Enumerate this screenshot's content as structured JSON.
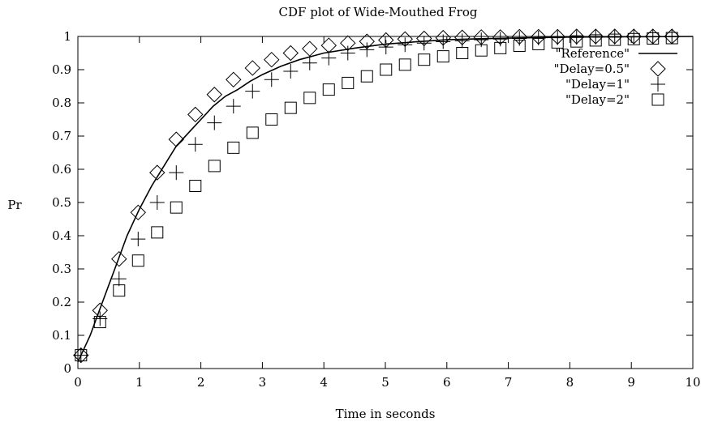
{
  "chart_data": {
    "type": "line",
    "title": "CDF plot of Wide-Mouthed Frog",
    "xlabel": "Time in seconds",
    "ylabel": "Pr",
    "xlim": [
      0,
      10
    ],
    "ylim": [
      0,
      1
    ],
    "xticks": [
      "0",
      "1",
      "2",
      "3",
      "4",
      "5",
      "6",
      "7",
      "8",
      "9",
      "10"
    ],
    "yticks": [
      "0",
      "0.1",
      "0.2",
      "0.3",
      "0.4",
      "0.5",
      "0.6",
      "0.7",
      "0.8",
      "0.9",
      "1"
    ],
    "grid": false,
    "legend_position": "top-right",
    "series": [
      {
        "name": "\"Reference\"",
        "style": "line",
        "x": [
          0,
          0.1,
          0.2,
          0.3,
          0.4,
          0.5,
          0.6,
          0.7,
          0.8,
          0.9,
          1.0,
          1.2,
          1.4,
          1.6,
          1.8,
          2.0,
          2.2,
          2.4,
          2.6,
          2.8,
          3.0,
          3.3,
          3.6,
          4.0,
          4.5,
          5.0,
          5.5,
          6.0,
          6.5,
          7.0,
          8.0,
          9.0,
          10.0
        ],
        "y": [
          0.02,
          0.06,
          0.1,
          0.15,
          0.2,
          0.25,
          0.3,
          0.35,
          0.4,
          0.44,
          0.48,
          0.55,
          0.61,
          0.67,
          0.71,
          0.75,
          0.79,
          0.82,
          0.84,
          0.865,
          0.885,
          0.91,
          0.93,
          0.95,
          0.965,
          0.977,
          0.984,
          0.99,
          0.993,
          0.995,
          0.998,
          0.999,
          1.0
        ]
      },
      {
        "name": "\"Delay=0.5\"",
        "style": "diamond",
        "x": [
          0.05,
          0.36,
          0.67,
          0.98,
          1.29,
          1.6,
          1.91,
          2.22,
          2.53,
          2.84,
          3.15,
          3.46,
          3.77,
          4.08,
          4.39,
          4.7,
          5.01,
          5.32,
          5.63,
          5.94,
          6.25,
          6.56,
          6.87,
          7.18,
          7.49,
          7.8,
          8.11,
          8.42,
          8.73,
          9.04,
          9.35,
          9.66
        ],
        "y": [
          0.04,
          0.175,
          0.33,
          0.47,
          0.59,
          0.69,
          0.765,
          0.825,
          0.87,
          0.905,
          0.93,
          0.95,
          0.963,
          0.973,
          0.98,
          0.985,
          0.989,
          0.992,
          0.994,
          0.996,
          0.997,
          0.998,
          0.998,
          0.999,
          0.999,
          0.999,
          1.0,
          1.0,
          1.0,
          1.0,
          1.0,
          1.0
        ]
      },
      {
        "name": "\"Delay=1\"",
        "style": "plus",
        "x": [
          0.05,
          0.36,
          0.67,
          0.98,
          1.29,
          1.6,
          1.91,
          2.22,
          2.53,
          2.84,
          3.15,
          3.46,
          3.77,
          4.08,
          4.39,
          4.7,
          5.01,
          5.32,
          5.63,
          5.94,
          6.25,
          6.56,
          6.87,
          7.18,
          7.49,
          7.8,
          8.11,
          8.42,
          8.73,
          9.04,
          9.35,
          9.66
        ],
        "y": [
          0.04,
          0.15,
          0.27,
          0.39,
          0.5,
          0.59,
          0.675,
          0.74,
          0.79,
          0.835,
          0.87,
          0.895,
          0.92,
          0.935,
          0.95,
          0.96,
          0.968,
          0.975,
          0.98,
          0.984,
          0.987,
          0.99,
          0.992,
          0.994,
          0.995,
          0.996,
          0.997,
          0.998,
          0.998,
          0.999,
          0.999,
          0.999
        ]
      },
      {
        "name": "\"Delay=2\"",
        "style": "square",
        "x": [
          0.05,
          0.36,
          0.67,
          0.98,
          1.29,
          1.6,
          1.91,
          2.22,
          2.53,
          2.84,
          3.15,
          3.46,
          3.77,
          4.08,
          4.39,
          4.7,
          5.01,
          5.32,
          5.63,
          5.94,
          6.25,
          6.56,
          6.87,
          7.18,
          7.49,
          7.8,
          8.11,
          8.42,
          8.73,
          9.04,
          9.35,
          9.66
        ],
        "y": [
          0.04,
          0.14,
          0.235,
          0.325,
          0.41,
          0.485,
          0.55,
          0.61,
          0.665,
          0.71,
          0.75,
          0.785,
          0.815,
          0.84,
          0.86,
          0.88,
          0.9,
          0.915,
          0.93,
          0.94,
          0.95,
          0.958,
          0.965,
          0.972,
          0.977,
          0.982,
          0.985,
          0.988,
          0.99,
          0.992,
          0.994,
          0.995
        ]
      }
    ]
  }
}
